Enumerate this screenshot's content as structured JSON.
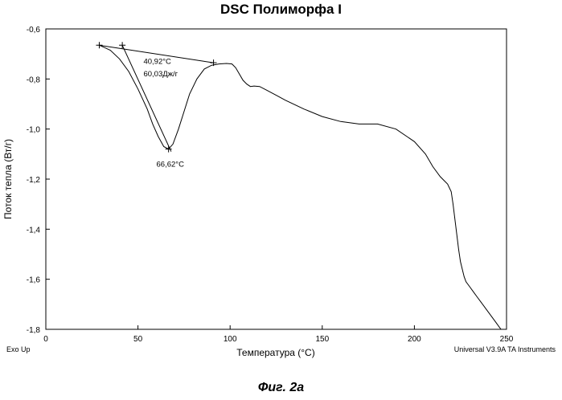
{
  "chart_data": {
    "type": "line",
    "title": "DSC Полиморфа I",
    "xlabel": "Температура (°C)",
    "ylabel": "Поток тепла (Вт/г)",
    "xlim": [
      0,
      250
    ],
    "ylim": [
      -1.8,
      -0.6
    ],
    "x_ticks": [
      0,
      50,
      100,
      150,
      200,
      250
    ],
    "x_tick_labels": [
      "0",
      "50",
      "100",
      "150",
      "200",
      "250"
    ],
    "y_ticks": [
      -0.6,
      -0.8,
      -1.0,
      -1.2,
      -1.4,
      -1.6,
      -1.8
    ],
    "y_tick_labels": [
      "-0,6",
      "-0,8",
      "-1,0",
      "-1,2",
      "-1,4",
      "-1,6",
      "-1,8"
    ],
    "grid": false,
    "series": [
      {
        "name": "heat flow",
        "x": [
          29,
          35,
          40,
          45,
          50,
          55,
          58,
          61,
          64,
          66.6,
          69,
          72,
          75,
          78,
          82,
          86,
          90,
          94,
          98,
          101,
          103,
          105,
          107,
          109,
          111,
          113,
          116,
          120,
          125,
          130,
          140,
          150,
          160,
          170,
          180,
          190,
          200,
          206,
          210,
          214,
          218,
          220,
          221,
          222,
          223,
          224,
          225,
          226,
          227,
          228,
          230,
          232,
          234,
          236,
          238,
          240,
          242,
          244,
          246,
          247
        ],
        "y": [
          -0.665,
          -0.685,
          -0.72,
          -0.77,
          -0.84,
          -0.92,
          -0.98,
          -1.03,
          -1.07,
          -1.08,
          -1.06,
          -1.0,
          -0.93,
          -0.86,
          -0.8,
          -0.76,
          -0.745,
          -0.74,
          -0.738,
          -0.74,
          -0.755,
          -0.78,
          -0.805,
          -0.82,
          -0.83,
          -0.828,
          -0.83,
          -0.845,
          -0.865,
          -0.885,
          -0.92,
          -0.95,
          -0.97,
          -0.98,
          -0.98,
          -1.0,
          -1.05,
          -1.1,
          -1.15,
          -1.19,
          -1.22,
          -1.25,
          -1.3,
          -1.36,
          -1.42,
          -1.48,
          -1.53,
          -1.56,
          -1.59,
          -1.61,
          -1.63,
          -1.65,
          -1.67,
          -1.69,
          -1.71,
          -1.73,
          -1.75,
          -1.77,
          -1.79,
          -1.8
        ]
      }
    ],
    "baseline": {
      "x": [
        29,
        91
      ],
      "y": [
        -0.665,
        -0.735
      ]
    },
    "tangent": {
      "x": [
        41.5,
        68
      ],
      "y": [
        -0.665,
        -1.09
      ]
    },
    "markers": [
      {
        "x": 29,
        "y": -0.665
      },
      {
        "x": 41.5,
        "y": -0.665
      },
      {
        "x": 66.6,
        "y": -1.08
      },
      {
        "x": 91,
        "y": -0.735
      }
    ],
    "annotations": [
      {
        "text": "40,92°C",
        "x": 53,
        "y": -0.74
      },
      {
        "text": "60,03Дж/г",
        "x": 53,
        "y": -0.79
      },
      {
        "text": "66,62°C",
        "x": 60,
        "y": -1.15
      }
    ]
  },
  "footer": {
    "left": "Exo Up",
    "right": "Universal V3.9A TA Instruments"
  },
  "caption": "Фиг. 2а"
}
